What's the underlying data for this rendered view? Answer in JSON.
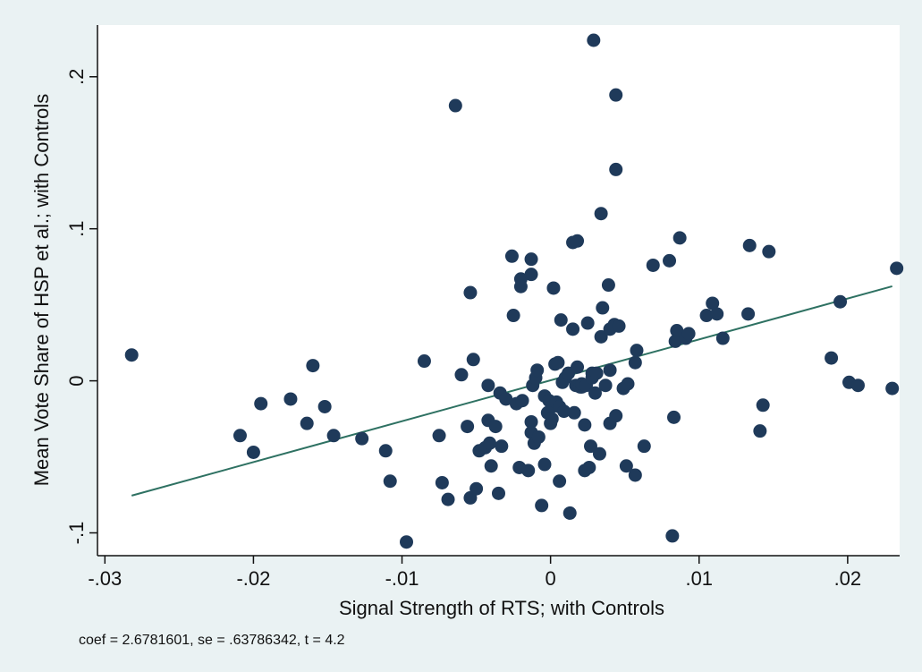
{
  "chart_data": {
    "type": "scatter",
    "title": "",
    "xlabel": "Signal Strength of RTS; with Controls",
    "ylabel": "Mean Vote Share of HSP et al.; with Controls",
    "note": "coef = 2.6781601, se = .63786342, t = 4.2",
    "xlim": [
      -0.0305,
      0.0235
    ],
    "ylim": [
      -0.115,
      0.234
    ],
    "x_ticks": [
      -0.03,
      -0.02,
      -0.01,
      0,
      0.01,
      0.02
    ],
    "x_tick_labels": [
      "-.03",
      "-.02",
      "-.01",
      "0",
      ".01",
      ".02"
    ],
    "y_ticks": [
      -0.1,
      0,
      0.1,
      0.2
    ],
    "y_tick_labels": [
      "-.1",
      "0",
      ".1",
      ".2"
    ],
    "grid": false,
    "colors": {
      "points": "#1f3a5a",
      "fit_line": "#2e7162",
      "background": "#eaf2f3",
      "plot_background": "#ffffff"
    },
    "fit_line": {
      "x": [
        -0.0282,
        0.023
      ],
      "y": [
        -0.0755,
        0.0622
      ]
    },
    "points": [
      {
        "x": -0.0282,
        "y": 0.017
      },
      {
        "x": -0.0209,
        "y": -0.036
      },
      {
        "x": -0.02,
        "y": -0.047
      },
      {
        "x": -0.0195,
        "y": -0.015
      },
      {
        "x": -0.0175,
        "y": -0.012
      },
      {
        "x": -0.0164,
        "y": -0.028
      },
      {
        "x": -0.016,
        "y": 0.01
      },
      {
        "x": -0.0152,
        "y": -0.017
      },
      {
        "x": -0.0146,
        "y": -0.036
      },
      {
        "x": -0.0127,
        "y": -0.038
      },
      {
        "x": -0.0111,
        "y": -0.046
      },
      {
        "x": -0.0108,
        "y": -0.066
      },
      {
        "x": -0.0097,
        "y": -0.106
      },
      {
        "x": -0.0085,
        "y": 0.013
      },
      {
        "x": -0.0075,
        "y": -0.036
      },
      {
        "x": -0.0073,
        "y": -0.067
      },
      {
        "x": -0.0069,
        "y": -0.078
      },
      {
        "x": -0.0064,
        "y": 0.181
      },
      {
        "x": -0.006,
        "y": 0.004
      },
      {
        "x": -0.0056,
        "y": -0.03
      },
      {
        "x": -0.0054,
        "y": 0.058
      },
      {
        "x": -0.0054,
        "y": -0.077
      },
      {
        "x": -0.0052,
        "y": 0.014
      },
      {
        "x": -0.005,
        "y": -0.071
      },
      {
        "x": -0.0048,
        "y": -0.046
      },
      {
        "x": -0.0044,
        "y": -0.044
      },
      {
        "x": -0.0042,
        "y": -0.026
      },
      {
        "x": -0.0042,
        "y": -0.003
      },
      {
        "x": -0.0041,
        "y": -0.041
      },
      {
        "x": -0.004,
        "y": -0.056
      },
      {
        "x": -0.0037,
        "y": -0.03
      },
      {
        "x": -0.0035,
        "y": -0.074
      },
      {
        "x": -0.0034,
        "y": -0.008
      },
      {
        "x": -0.0033,
        "y": -0.043
      },
      {
        "x": -0.003,
        "y": -0.012
      },
      {
        "x": -0.0026,
        "y": 0.082
      },
      {
        "x": -0.0025,
        "y": 0.043
      },
      {
        "x": -0.0023,
        "y": -0.015
      },
      {
        "x": -0.0021,
        "y": -0.057
      },
      {
        "x": -0.002,
        "y": 0.067
      },
      {
        "x": -0.002,
        "y": 0.062
      },
      {
        "x": -0.0019,
        "y": -0.013
      },
      {
        "x": -0.0015,
        "y": -0.059
      },
      {
        "x": -0.0013,
        "y": 0.08
      },
      {
        "x": -0.0013,
        "y": 0.07
      },
      {
        "x": -0.0013,
        "y": -0.027
      },
      {
        "x": -0.0013,
        "y": -0.034
      },
      {
        "x": -0.0012,
        "y": -0.003
      },
      {
        "x": -0.0011,
        "y": -0.041
      },
      {
        "x": -0.001,
        "y": 0.002
      },
      {
        "x": -0.0009,
        "y": 0.007
      },
      {
        "x": -0.0008,
        "y": -0.037
      },
      {
        "x": -0.0006,
        "y": -0.082
      },
      {
        "x": -0.0004,
        "y": -0.055
      },
      {
        "x": -0.0004,
        "y": -0.01
      },
      {
        "x": -0.0002,
        "y": -0.021
      },
      {
        "x": -0.0001,
        "y": -0.013
      },
      {
        "x": 0.0,
        "y": -0.028
      },
      {
        "x": 0.0001,
        "y": -0.017
      },
      {
        "x": 0.0001,
        "y": -0.025
      },
      {
        "x": 0.0002,
        "y": 0.061
      },
      {
        "x": 0.0003,
        "y": 0.011
      },
      {
        "x": 0.0004,
        "y": -0.014
      },
      {
        "x": 0.0005,
        "y": 0.012
      },
      {
        "x": 0.0006,
        "y": -0.017
      },
      {
        "x": 0.0006,
        "y": -0.066
      },
      {
        "x": 0.0007,
        "y": 0.04
      },
      {
        "x": 0.0008,
        "y": -0.001
      },
      {
        "x": 0.0009,
        "y": -0.02
      },
      {
        "x": 0.001,
        "y": 0.002
      },
      {
        "x": 0.0012,
        "y": 0.005
      },
      {
        "x": 0.0013,
        "y": -0.087
      },
      {
        "x": 0.0015,
        "y": 0.034
      },
      {
        "x": 0.0015,
        "y": 0.091
      },
      {
        "x": 0.0016,
        "y": -0.021
      },
      {
        "x": 0.0017,
        "y": -0.003
      },
      {
        "x": 0.0018,
        "y": 0.092
      },
      {
        "x": 0.0018,
        "y": 0.009
      },
      {
        "x": 0.002,
        "y": -0.004
      },
      {
        "x": 0.0021,
        "y": -0.004
      },
      {
        "x": 0.0021,
        "y": -0.002
      },
      {
        "x": 0.0023,
        "y": -0.059
      },
      {
        "x": 0.0023,
        "y": -0.029
      },
      {
        "x": 0.0024,
        "y": -0.003
      },
      {
        "x": 0.0025,
        "y": 0.038
      },
      {
        "x": 0.0026,
        "y": -0.057
      },
      {
        "x": 0.0027,
        "y": -0.043
      },
      {
        "x": 0.0028,
        "y": 0.005
      },
      {
        "x": 0.0028,
        "y": 0.002
      },
      {
        "x": 0.0029,
        "y": 0.224
      },
      {
        "x": 0.003,
        "y": -0.008
      },
      {
        "x": 0.0031,
        "y": 0.005
      },
      {
        "x": 0.0033,
        "y": -0.048
      },
      {
        "x": 0.0034,
        "y": 0.029
      },
      {
        "x": 0.0034,
        "y": 0.11
      },
      {
        "x": 0.0035,
        "y": 0.048
      },
      {
        "x": 0.0037,
        "y": -0.003
      },
      {
        "x": 0.0039,
        "y": 0.063
      },
      {
        "x": 0.004,
        "y": 0.007
      },
      {
        "x": 0.004,
        "y": 0.034
      },
      {
        "x": 0.004,
        "y": -0.028
      },
      {
        "x": 0.0043,
        "y": 0.037
      },
      {
        "x": 0.0044,
        "y": -0.023
      },
      {
        "x": 0.0044,
        "y": 0.139
      },
      {
        "x": 0.0044,
        "y": 0.188
      },
      {
        "x": 0.0046,
        "y": 0.036
      },
      {
        "x": 0.0049,
        "y": -0.005
      },
      {
        "x": 0.0051,
        "y": -0.056
      },
      {
        "x": 0.0052,
        "y": -0.002
      },
      {
        "x": 0.0057,
        "y": 0.012
      },
      {
        "x": 0.0057,
        "y": -0.062
      },
      {
        "x": 0.0058,
        "y": 0.02
      },
      {
        "x": 0.0063,
        "y": -0.043
      },
      {
        "x": 0.0069,
        "y": 0.076
      },
      {
        "x": 0.008,
        "y": 0.079
      },
      {
        "x": 0.0082,
        "y": -0.102
      },
      {
        "x": 0.0083,
        "y": -0.024
      },
      {
        "x": 0.0084,
        "y": 0.026
      },
      {
        "x": 0.0085,
        "y": 0.033
      },
      {
        "x": 0.0087,
        "y": 0.094
      },
      {
        "x": 0.0091,
        "y": 0.028
      },
      {
        "x": 0.0093,
        "y": 0.031
      },
      {
        "x": 0.0105,
        "y": 0.043
      },
      {
        "x": 0.0109,
        "y": 0.051
      },
      {
        "x": 0.0112,
        "y": 0.044
      },
      {
        "x": 0.0116,
        "y": 0.028
      },
      {
        "x": 0.0133,
        "y": 0.044
      },
      {
        "x": 0.0134,
        "y": 0.089
      },
      {
        "x": 0.0141,
        "y": -0.033
      },
      {
        "x": 0.0143,
        "y": -0.016
      },
      {
        "x": 0.0147,
        "y": 0.085
      },
      {
        "x": 0.0189,
        "y": 0.015
      },
      {
        "x": 0.0195,
        "y": 0.052
      },
      {
        "x": 0.0201,
        "y": -0.001
      },
      {
        "x": 0.0207,
        "y": -0.003
      },
      {
        "x": 0.023,
        "y": -0.005
      },
      {
        "x": 0.0233,
        "y": 0.074
      }
    ]
  }
}
